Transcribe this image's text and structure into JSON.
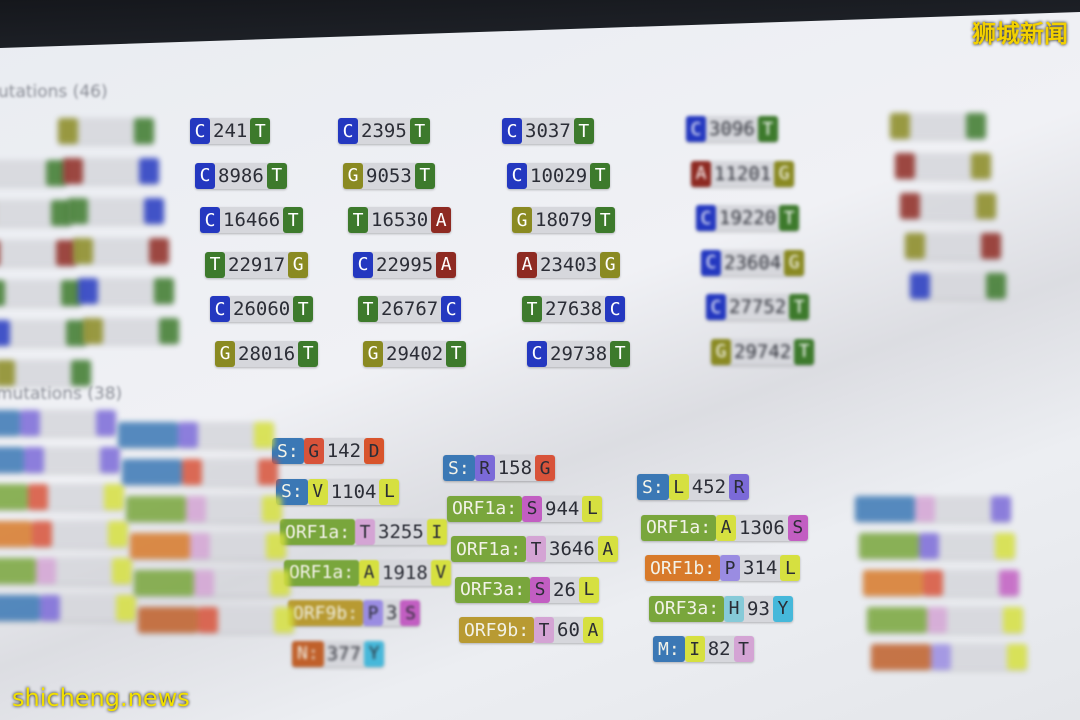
{
  "watermarks": {
    "top_right": "狮城新闻",
    "bottom_left": "shicheng.news"
  },
  "sections": {
    "nucleotide_heading": "utations (46)",
    "aminoacid_heading": "mutations (38)"
  },
  "colors": {
    "nuc": {
      "A": "#8e2a22",
      "C": "#2438c0",
      "G": "#8a8a22",
      "T": "#3d7a2c"
    },
    "gene": {
      "S": "#3b78b5",
      "ORF1a": "#79a63c",
      "ORF1b": "#d87a2a",
      "ORF3a": "#79a63c",
      "ORF9b": "#b89a32",
      "M": "#3b78b5",
      "N": "#c0602a"
    },
    "aa": {
      "R": "#7b6ad8",
      "G": "#d8533a",
      "L": "#d6e040",
      "S": "#c25ec2",
      "T": "#d4a4d4",
      "A": "#d6e040",
      "I": "#d6e040",
      "P": "#9a8ce2",
      "H": "#86cad8",
      "Y": "#46b8da",
      "D": "#d8542c",
      "V": "#d6e040",
      "E": "#7b6ad8"
    }
  },
  "nucleotide_mutations": [
    {
      "column": 2,
      "items": [
        {
          "ref": "C",
          "pos": "241",
          "alt": "T"
        },
        {
          "ref": "C",
          "pos": "8986",
          "alt": "T"
        },
        {
          "ref": "C",
          "pos": "16466",
          "alt": "T"
        },
        {
          "ref": "T",
          "pos": "22917",
          "alt": "G"
        },
        {
          "ref": "C",
          "pos": "26060",
          "alt": "T"
        },
        {
          "ref": "G",
          "pos": "28016",
          "alt": "T"
        }
      ]
    },
    {
      "column": 3,
      "items": [
        {
          "ref": "C",
          "pos": "2395",
          "alt": "T"
        },
        {
          "ref": "G",
          "pos": "9053",
          "alt": "T"
        },
        {
          "ref": "T",
          "pos": "16530",
          "alt": "A"
        },
        {
          "ref": "C",
          "pos": "22995",
          "alt": "A"
        },
        {
          "ref": "T",
          "pos": "26767",
          "alt": "C"
        },
        {
          "ref": "G",
          "pos": "29402",
          "alt": "T"
        }
      ]
    },
    {
      "column": 4,
      "items": [
        {
          "ref": "C",
          "pos": "3037",
          "alt": "T"
        },
        {
          "ref": "C",
          "pos": "10029",
          "alt": "T"
        },
        {
          "ref": "G",
          "pos": "18079",
          "alt": "T"
        },
        {
          "ref": "A",
          "pos": "23403",
          "alt": "G"
        },
        {
          "ref": "T",
          "pos": "27638",
          "alt": "C"
        },
        {
          "ref": "C",
          "pos": "29738",
          "alt": "T"
        }
      ]
    },
    {
      "column": 5,
      "items": [
        {
          "ref": "C",
          "pos": "3096",
          "alt": "T"
        },
        {
          "ref": "A",
          "pos": "11201",
          "alt": "G"
        },
        {
          "ref": "C",
          "pos": "19220",
          "alt": "T"
        },
        {
          "ref": "C",
          "pos": "23604",
          "alt": "G"
        },
        {
          "ref": "C",
          "pos": "27752",
          "alt": "T"
        },
        {
          "ref": "G",
          "pos": "29742",
          "alt": "T"
        }
      ]
    }
  ],
  "nucleotide_blurred_columns": [
    {
      "column": 0,
      "colors": [
        [
          "T",
          "T"
        ],
        [
          "G",
          "T"
        ],
        [
          "A",
          "A"
        ],
        [
          "T",
          "T"
        ],
        [
          "C",
          "T"
        ],
        [
          "G",
          "T"
        ]
      ]
    },
    {
      "column": 1,
      "colors": [
        [
          "G",
          "T"
        ],
        [
          "A",
          "C"
        ],
        [
          "T",
          "C"
        ],
        [
          "G",
          "A"
        ],
        [
          "C",
          "T"
        ],
        [
          "G",
          "T"
        ]
      ]
    },
    {
      "column": 6,
      "colors": [
        [
          "G",
          "T"
        ],
        [
          "A",
          "G"
        ],
        [
          "A",
          "G"
        ],
        [
          "G",
          "A"
        ],
        [
          "C",
          "T"
        ]
      ]
    }
  ],
  "aminoacid_mutations": [
    {
      "column": 2,
      "items": [
        {
          "gene": "S",
          "ref": "G",
          "pos": "142",
          "alt": "D"
        },
        {
          "gene": "S",
          "ref": "V",
          "pos": "1104",
          "alt": "L"
        },
        {
          "gene": "ORF1a",
          "ref": "T",
          "pos": "3255",
          "alt": "I"
        },
        {
          "gene": "ORF1a",
          "ref": "A",
          "pos": "1918",
          "alt": "V"
        },
        {
          "gene": "ORF9b",
          "ref": "P",
          "pos": "3",
          "alt": "S"
        },
        {
          "gene": "N",
          "ref": "",
          "pos": "377",
          "alt": "Y"
        }
      ]
    },
    {
      "column": 3,
      "items": [
        {
          "gene": "S",
          "ref": "R",
          "pos": "158",
          "alt": "G"
        },
        {
          "gene": "ORF1a",
          "ref": "S",
          "pos": "944",
          "alt": "L"
        },
        {
          "gene": "ORF1a",
          "ref": "T",
          "pos": "3646",
          "alt": "A"
        },
        {
          "gene": "ORF3a",
          "ref": "S",
          "pos": "26",
          "alt": "L"
        },
        {
          "gene": "ORF9b",
          "ref": "T",
          "pos": "60",
          "alt": "A"
        }
      ]
    },
    {
      "column": 4,
      "items": [
        {
          "gene": "S",
          "ref": "L",
          "pos": "452",
          "alt": "R"
        },
        {
          "gene": "ORF1a",
          "ref": "A",
          "pos": "1306",
          "alt": "S"
        },
        {
          "gene": "ORF1b",
          "ref": "P",
          "pos": "314",
          "alt": "L"
        },
        {
          "gene": "ORF3a",
          "ref": "H",
          "pos": "93",
          "alt": "Y"
        },
        {
          "gene": "M",
          "ref": "I",
          "pos": "82",
          "alt": "T"
        }
      ]
    }
  ],
  "aminoacid_blurred_columns": [
    {
      "column": 0,
      "colors": [
        [
          "S",
          "R",
          "E"
        ],
        [
          "S",
          "R",
          "R"
        ],
        [
          "ORF1a",
          "G",
          "L"
        ],
        [
          "ORF1b",
          "G",
          "L"
        ],
        [
          "ORF1a",
          "T",
          "L"
        ],
        [
          "S",
          "R",
          "L"
        ]
      ]
    },
    {
      "column": 1,
      "colors": [
        [
          "S",
          "R",
          "L"
        ],
        [
          "S",
          "G",
          "G"
        ],
        [
          "ORF1a",
          "T",
          "L"
        ],
        [
          "ORF1b",
          "T",
          "L"
        ],
        [
          "ORF3a",
          "T",
          "L"
        ],
        [
          "N",
          "G",
          "L"
        ]
      ]
    },
    {
      "column": 5,
      "colors": [
        [
          "S",
          "T",
          "R"
        ],
        [
          "ORF1a",
          "R",
          "L"
        ],
        [
          "ORF1b",
          "G",
          "S"
        ],
        [
          "ORF1a",
          "T",
          "L"
        ],
        [
          "N",
          "P",
          "L"
        ]
      ]
    }
  ]
}
